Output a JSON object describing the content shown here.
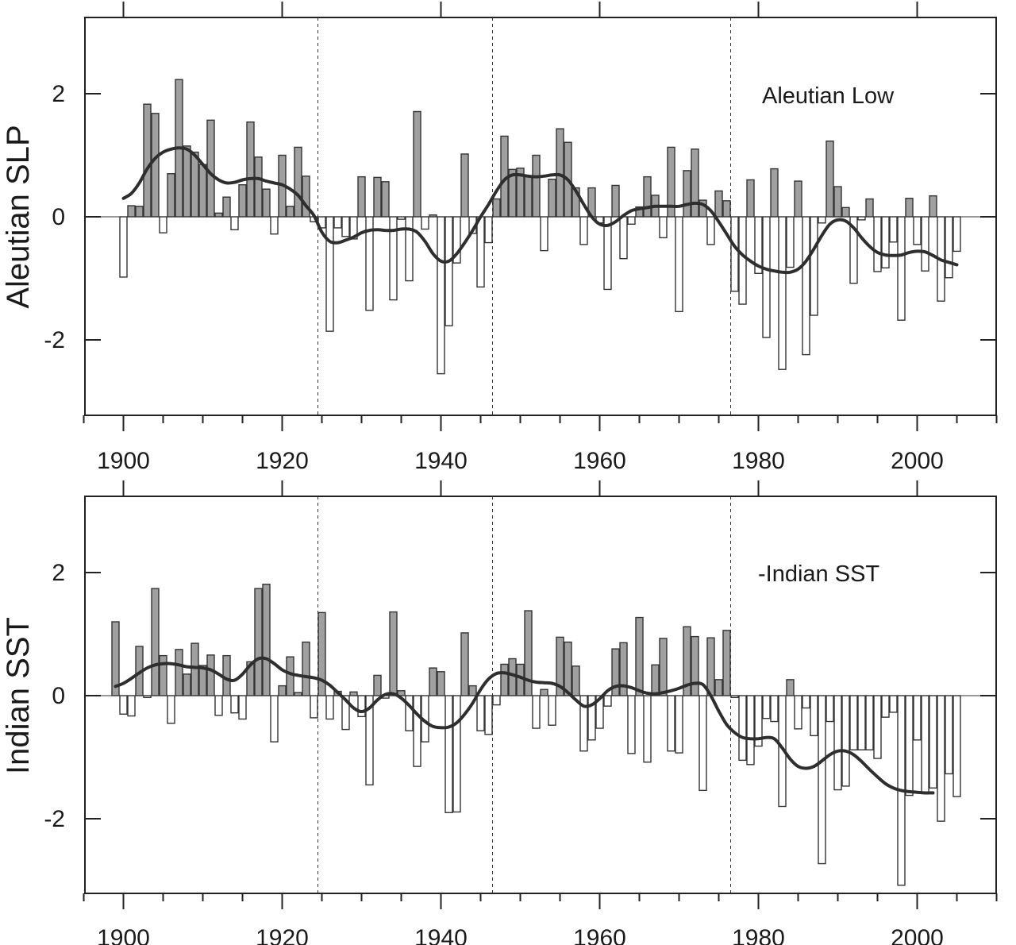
{
  "chart_data": [
    {
      "type": "bar",
      "title": "",
      "annotation": "Aleutian Low",
      "ylabel": "Aleutian SLP",
      "xlabel": "",
      "ylim": [
        -3.2,
        3.2
      ],
      "xlim": [
        1895,
        2010
      ],
      "yticks": [
        -2,
        0,
        2
      ],
      "ytick_labels": [
        "-2",
        "0",
        "2"
      ],
      "xticks": [
        1900,
        1920,
        1940,
        1960,
        1980,
        2000
      ],
      "xtick_labels": [
        "1900",
        "1920",
        "1940",
        "1960",
        "1980",
        "2000"
      ],
      "regime_shift_years": [
        1924.5,
        1946.5,
        1976.5
      ],
      "years": [
        1900,
        1901,
        1902,
        1903,
        1904,
        1905,
        1906,
        1907,
        1908,
        1909,
        1910,
        1911,
        1912,
        1913,
        1914,
        1915,
        1916,
        1917,
        1918,
        1919,
        1920,
        1921,
        1922,
        1923,
        1924,
        1925,
        1926,
        1927,
        1928,
        1929,
        1930,
        1931,
        1932,
        1933,
        1934,
        1935,
        1936,
        1937,
        1938,
        1939,
        1940,
        1941,
        1942,
        1943,
        1944,
        1945,
        1946,
        1947,
        1948,
        1949,
        1950,
        1951,
        1952,
        1953,
        1954,
        1955,
        1956,
        1957,
        1958,
        1959,
        1960,
        1961,
        1962,
        1963,
        1964,
        1965,
        1966,
        1967,
        1968,
        1969,
        1970,
        1971,
        1972,
        1973,
        1974,
        1975,
        1976,
        1977,
        1978,
        1979,
        1980,
        1981,
        1982,
        1983,
        1984,
        1985,
        1986,
        1987,
        1988,
        1989,
        1990,
        1991,
        1992,
        1993,
        1994,
        1995,
        1996,
        1997,
        1998,
        1999,
        2000,
        2001,
        2002,
        2003,
        2004,
        2005
      ],
      "values": [
        -0.98,
        0.18,
        0.17,
        1.83,
        1.68,
        -0.26,
        0.7,
        2.23,
        1.15,
        1.05,
        0.85,
        1.57,
        0.06,
        0.32,
        -0.21,
        0.52,
        1.54,
        0.97,
        0.45,
        -0.28,
        1.0,
        0.17,
        1.13,
        0.66,
        -0.08,
        -0.18,
        -1.86,
        -0.18,
        -0.32,
        -0.36,
        0.65,
        -1.52,
        0.64,
        0.57,
        -1.35,
        -0.04,
        -1.04,
        1.71,
        -0.2,
        0.03,
        -2.55,
        -1.77,
        -0.75,
        1.02,
        -0.27,
        -1.14,
        -0.42,
        0.29,
        1.31,
        0.77,
        0.79,
        0.66,
        1.0,
        -0.55,
        0.61,
        1.43,
        1.21,
        0.47,
        -0.45,
        0.47,
        -0.1,
        -1.18,
        0.51,
        -0.68,
        -0.12,
        0.16,
        0.65,
        0.35,
        -0.34,
        1.13,
        -1.54,
        0.75,
        1.1,
        0.27,
        -0.45,
        0.42,
        0.26,
        -1.21,
        -1.42,
        0.6,
        -0.92,
        -1.96,
        0.78,
        -2.48,
        -0.82,
        0.58,
        -2.24,
        -1.6,
        -0.1,
        1.23,
        0.49,
        0.15,
        -1.08,
        -0.05,
        0.29,
        -0.89,
        -0.83,
        -0.41,
        -1.68,
        0.3,
        -0.45,
        -0.88,
        0.34,
        -1.37,
        -0.99,
        -0.56
      ],
      "smooth_years": [
        1900,
        1901,
        1902,
        1903,
        1904,
        1905,
        1906,
        1907,
        1908,
        1909,
        1910,
        1911,
        1912,
        1913,
        1914,
        1915,
        1916,
        1917,
        1918,
        1919,
        1920,
        1921,
        1922,
        1923,
        1924,
        1925,
        1926,
        1927,
        1928,
        1929,
        1930,
        1931,
        1932,
        1933,
        1934,
        1935,
        1936,
        1937,
        1938,
        1939,
        1940,
        1941,
        1942,
        1943,
        1944,
        1945,
        1946,
        1947,
        1948,
        1949,
        1950,
        1951,
        1952,
        1953,
        1954,
        1955,
        1956,
        1957,
        1958,
        1959,
        1960,
        1961,
        1962,
        1963,
        1964,
        1965,
        1966,
        1967,
        1968,
        1969,
        1970,
        1971,
        1972,
        1973,
        1974,
        1975,
        1976,
        1977,
        1978,
        1979,
        1980,
        1981,
        1982,
        1983,
        1984,
        1985,
        1986,
        1987,
        1988,
        1989,
        1990,
        1991,
        1992,
        1993,
        1994,
        1995,
        1996,
        1997,
        1998,
        1999,
        2000,
        2001,
        2002,
        2003,
        2004,
        2005
      ],
      "smooth_values": [
        0.3,
        0.38,
        0.55,
        0.78,
        0.95,
        1.05,
        1.1,
        1.12,
        1.1,
        1.0,
        0.85,
        0.7,
        0.6,
        0.55,
        0.56,
        0.6,
        0.62,
        0.62,
        0.58,
        0.55,
        0.52,
        0.45,
        0.35,
        0.18,
        0.02,
        -0.25,
        -0.4,
        -0.42,
        -0.38,
        -0.33,
        -0.26,
        -0.22,
        -0.21,
        -0.22,
        -0.22,
        -0.2,
        -0.2,
        -0.25,
        -0.4,
        -0.6,
        -0.72,
        -0.72,
        -0.6,
        -0.42,
        -0.22,
        0.0,
        0.2,
        0.42,
        0.6,
        0.68,
        0.68,
        0.66,
        0.65,
        0.66,
        0.68,
        0.68,
        0.6,
        0.42,
        0.2,
        0.0,
        -0.12,
        -0.14,
        -0.08,
        0.02,
        0.1,
        0.13,
        0.15,
        0.17,
        0.17,
        0.17,
        0.17,
        0.2,
        0.22,
        0.2,
        0.1,
        -0.08,
        -0.28,
        -0.48,
        -0.62,
        -0.72,
        -0.8,
        -0.85,
        -0.88,
        -0.9,
        -0.9,
        -0.85,
        -0.72,
        -0.52,
        -0.3,
        -0.12,
        -0.05,
        -0.07,
        -0.18,
        -0.34,
        -0.48,
        -0.58,
        -0.62,
        -0.63,
        -0.62,
        -0.58,
        -0.56,
        -0.57,
        -0.63,
        -0.7,
        -0.74,
        -0.78
      ]
    },
    {
      "type": "bar",
      "title": "",
      "annotation": "-Indian SST",
      "ylabel": "Indian SST",
      "xlabel": "",
      "ylim": [
        -3.2,
        3.2
      ],
      "xlim": [
        1895,
        2010
      ],
      "yticks": [
        -2,
        0,
        2
      ],
      "ytick_labels": [
        "-2",
        "0",
        "2"
      ],
      "xticks": [
        1900,
        1920,
        1940,
        1960,
        1980,
        2000
      ],
      "xtick_labels": [
        "1900",
        "1920",
        "1940",
        "1960",
        "1980",
        "2000"
      ],
      "regime_shift_years": [
        1924.5,
        1946.5,
        1976.5
      ],
      "years": [
        1899,
        1900,
        1901,
        1902,
        1903,
        1904,
        1905,
        1906,
        1907,
        1908,
        1909,
        1910,
        1911,
        1912,
        1913,
        1914,
        1915,
        1916,
        1917,
        1918,
        1919,
        1920,
        1921,
        1922,
        1923,
        1924,
        1925,
        1926,
        1927,
        1928,
        1929,
        1930,
        1931,
        1932,
        1933,
        1934,
        1935,
        1936,
        1937,
        1938,
        1939,
        1940,
        1941,
        1942,
        1943,
        1944,
        1945,
        1946,
        1947,
        1948,
        1949,
        1950,
        1951,
        1952,
        1953,
        1954,
        1955,
        1956,
        1957,
        1958,
        1959,
        1960,
        1961,
        1962,
        1963,
        1964,
        1965,
        1966,
        1967,
        1968,
        1969,
        1970,
        1971,
        1972,
        1973,
        1974,
        1975,
        1976,
        1977,
        1978,
        1979,
        1980,
        1981,
        1982,
        1983,
        1984,
        1985,
        1986,
        1987,
        1988,
        1989,
        1990,
        1991,
        1992,
        1993,
        1994,
        1995,
        1996,
        1997,
        1998,
        1999,
        2000,
        2001,
        2002,
        2003,
        2004,
        2005
      ],
      "values": [
        1.2,
        -0.3,
        -0.33,
        0.8,
        -0.03,
        1.74,
        0.65,
        -0.45,
        0.75,
        0.35,
        0.85,
        0.49,
        0.66,
        -0.32,
        0.65,
        -0.28,
        -0.38,
        0.55,
        1.74,
        1.81,
        -0.75,
        0.16,
        0.63,
        0.05,
        0.87,
        -0.36,
        1.35,
        -0.38,
        0.07,
        -0.55,
        0.06,
        -0.34,
        -1.45,
        0.33,
        -0.04,
        1.36,
        0.08,
        -0.57,
        -1.15,
        -0.75,
        0.45,
        0.39,
        -1.9,
        -1.89,
        1.02,
        0.16,
        -0.57,
        -0.63,
        -0.15,
        0.51,
        0.6,
        0.51,
        1.38,
        -0.53,
        0.1,
        -0.48,
        0.95,
        0.87,
        0.48,
        -0.9,
        -0.72,
        -0.53,
        -0.17,
        0.76,
        0.86,
        -0.94,
        1.27,
        -1.08,
        0.5,
        0.93,
        -0.9,
        -0.93,
        1.12,
        0.96,
        -1.54,
        0.94,
        0.26,
        1.06,
        -0.03,
        -1.05,
        -1.12,
        -0.82,
        -0.37,
        -0.42,
        -1.8,
        0.26,
        -0.54,
        -0.2,
        -0.65,
        -2.73,
        -0.42,
        -1.53,
        -1.47,
        -0.88,
        -0.88,
        -0.88,
        -1.02,
        -0.35,
        -0.27,
        -3.08,
        -1.62,
        -0.72,
        -1.58,
        -1.5,
        -2.04,
        -1.27,
        -1.64
      ],
      "smooth_years": [
        1899,
        1900,
        1901,
        1902,
        1903,
        1904,
        1905,
        1906,
        1907,
        1908,
        1909,
        1910,
        1911,
        1912,
        1913,
        1914,
        1915,
        1916,
        1917,
        1918,
        1919,
        1920,
        1921,
        1922,
        1923,
        1924,
        1925,
        1926,
        1927,
        1928,
        1929,
        1930,
        1931,
        1932,
        1933,
        1934,
        1935,
        1936,
        1937,
        1938,
        1939,
        1940,
        1941,
        1942,
        1943,
        1944,
        1945,
        1946,
        1947,
        1948,
        1949,
        1950,
        1951,
        1952,
        1953,
        1954,
        1955,
        1956,
        1957,
        1958,
        1959,
        1960,
        1961,
        1962,
        1963,
        1964,
        1965,
        1966,
        1967,
        1968,
        1969,
        1970,
        1971,
        1972,
        1973,
        1974,
        1975,
        1976,
        1977,
        1978,
        1979,
        1980,
        1981,
        1982,
        1983,
        1984,
        1985,
        1986,
        1987,
        1988,
        1989,
        1990,
        1991,
        1992,
        1993,
        1994,
        1995,
        1996,
        1997,
        1998,
        1999,
        2000,
        2001,
        2002,
        2003,
        2004,
        2005
      ],
      "smooth_values": [
        0.15,
        0.2,
        0.28,
        0.37,
        0.45,
        0.5,
        0.52,
        0.52,
        0.5,
        0.47,
        0.46,
        0.45,
        0.42,
        0.35,
        0.27,
        0.25,
        0.35,
        0.5,
        0.6,
        0.6,
        0.52,
        0.42,
        0.36,
        0.33,
        0.31,
        0.29,
        0.25,
        0.17,
        0.05,
        -0.07,
        -0.2,
        -0.26,
        -0.2,
        -0.07,
        0.02,
        0.03,
        -0.04,
        -0.16,
        -0.3,
        -0.42,
        -0.5,
        -0.52,
        -0.51,
        -0.44,
        -0.3,
        -0.12,
        0.1,
        0.27,
        0.36,
        0.37,
        0.34,
        0.3,
        0.25,
        0.22,
        0.21,
        0.2,
        0.15,
        0.05,
        -0.07,
        -0.17,
        -0.15,
        -0.05,
        0.08,
        0.15,
        0.16,
        0.13,
        0.08,
        0.04,
        0.03,
        0.05,
        0.08,
        0.12,
        0.17,
        0.2,
        0.18,
        0.0,
        -0.25,
        -0.47,
        -0.6,
        -0.68,
        -0.7,
        -0.7,
        -0.68,
        -0.7,
        -0.85,
        -1.03,
        -1.15,
        -1.18,
        -1.15,
        -1.06,
        -0.96,
        -0.9,
        -0.9,
        -0.96,
        -1.07,
        -1.2,
        -1.32,
        -1.43,
        -1.5,
        -1.54,
        -1.56,
        -1.57,
        -1.58,
        -1.58,
        -1.6
      ]
    }
  ]
}
